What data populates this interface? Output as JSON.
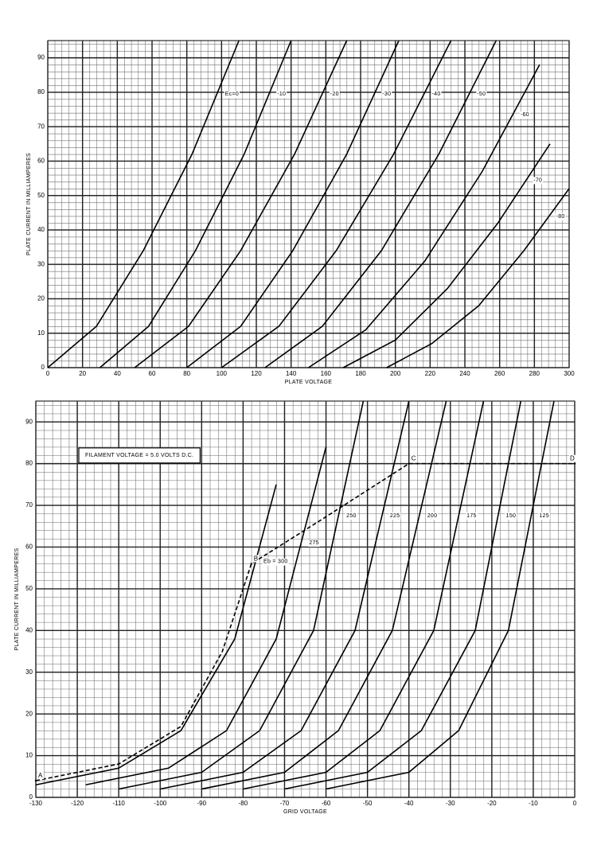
{
  "chart_data": [
    {
      "type": "line",
      "color": "#000000",
      "x_label": "PLATE VOLTAGE",
      "y_label": "PLATE CURRENT IN MILLIAMPERES",
      "xlim": [
        0,
        300
      ],
      "ylim": [
        0,
        95
      ],
      "xticks": [
        0,
        20,
        40,
        60,
        80,
        100,
        120,
        140,
        160,
        180,
        200,
        220,
        240,
        260,
        280,
        300
      ],
      "yticks": [
        0,
        10,
        20,
        30,
        40,
        50,
        60,
        70,
        80,
        90
      ],
      "grid": true,
      "series": [
        {
          "name": "Ec=0",
          "x": [
            0,
            28,
            55,
            83,
            110
          ],
          "values": [
            0,
            12,
            34,
            62,
            95
          ]
        },
        {
          "name": "-10",
          "x": [
            30,
            58,
            85,
            113,
            140
          ],
          "values": [
            0,
            12,
            34,
            62,
            95
          ]
        },
        {
          "name": "-20",
          "x": [
            50,
            81,
            111,
            142,
            172
          ],
          "values": [
            0,
            12,
            34,
            62,
            95
          ]
        },
        {
          "name": "-30",
          "x": [
            80,
            111,
            141,
            172,
            202
          ],
          "values": [
            0,
            12,
            34,
            62,
            95
          ]
        },
        {
          "name": "-40",
          "x": [
            100,
            133,
            166,
            199,
            232
          ],
          "values": [
            0,
            12,
            34,
            62,
            95
          ]
        },
        {
          "name": "-50",
          "x": [
            125,
            158,
            192,
            225,
            258
          ],
          "values": [
            0,
            12,
            34,
            62,
            95
          ]
        },
        {
          "name": "-60",
          "x": [
            150,
            183,
            217,
            250,
            283
          ],
          "values": [
            0,
            11,
            31,
            57,
            88
          ]
        },
        {
          "name": "-70",
          "x": [
            170,
            200,
            230,
            259,
            289
          ],
          "values": [
            0,
            8,
            23,
            42,
            65
          ]
        },
        {
          "name": "-80",
          "x": [
            195,
            221,
            248,
            274,
            300
          ],
          "values": [
            0,
            7,
            18,
            34,
            52
          ]
        }
      ]
    },
    {
      "type": "line",
      "color": "#000000",
      "x_label": "GRID VOLTAGE",
      "y_label": "PLATE CURRENT IN MILLIAMPERES",
      "annotation": "FILAMENT VOLTAGE = 5.0 VOLTS D.C.",
      "xlim": [
        -130,
        0
      ],
      "ylim": [
        0,
        95
      ],
      "xticks": [
        -130,
        -120,
        -110,
        -100,
        -90,
        -80,
        -70,
        -60,
        -50,
        -40,
        -30,
        -20,
        -10,
        0
      ],
      "yticks": [
        0,
        10,
        20,
        30,
        40,
        50,
        60,
        70,
        80,
        90
      ],
      "grid": true,
      "series": [
        {
          "name": "Eb = 300",
          "x": [
            -130,
            -110,
            -95,
            -82,
            -72
          ],
          "values": [
            3,
            7,
            16,
            38,
            75
          ]
        },
        {
          "name": "275",
          "x": [
            -118,
            -98,
            -84,
            -72,
            -60
          ],
          "values": [
            3,
            7,
            16,
            38,
            84
          ]
        },
        {
          "name": "250",
          "x": [
            -110,
            -90,
            -76,
            -63,
            -51
          ],
          "values": [
            2,
            6,
            16,
            40,
            95
          ]
        },
        {
          "name": "225",
          "x": [
            -100,
            -80,
            -66,
            -53,
            -40
          ],
          "values": [
            2,
            6,
            16,
            40,
            95
          ]
        },
        {
          "name": "200",
          "x": [
            -90,
            -70,
            -57,
            -44,
            -31
          ],
          "values": [
            2,
            6,
            16,
            40,
            95
          ]
        },
        {
          "name": "175",
          "x": [
            -80,
            -60,
            -47,
            -34,
            -22
          ],
          "values": [
            2,
            6,
            16,
            40,
            95
          ]
        },
        {
          "name": "150",
          "x": [
            -70,
            -50,
            -37,
            -24,
            -13
          ],
          "values": [
            2,
            6,
            16,
            40,
            95
          ]
        },
        {
          "name": "125",
          "x": [
            -60,
            -40,
            -28,
            -16,
            -5
          ],
          "values": [
            2,
            6,
            16,
            40,
            95
          ]
        }
      ],
      "load_line": {
        "x": [
          -130,
          -110,
          -95,
          -85,
          -78,
          -62,
          -40,
          0
        ],
        "values": [
          4,
          8,
          17,
          35,
          56,
          66,
          80,
          80
        ]
      },
      "points": [
        {
          "label": "A",
          "x": -130,
          "y": 4
        },
        {
          "label": "B",
          "x": -78,
          "y": 56
        },
        {
          "label": "C",
          "x": -40,
          "y": 80
        },
        {
          "label": "D",
          "x": 0,
          "y": 80
        }
      ]
    }
  ]
}
